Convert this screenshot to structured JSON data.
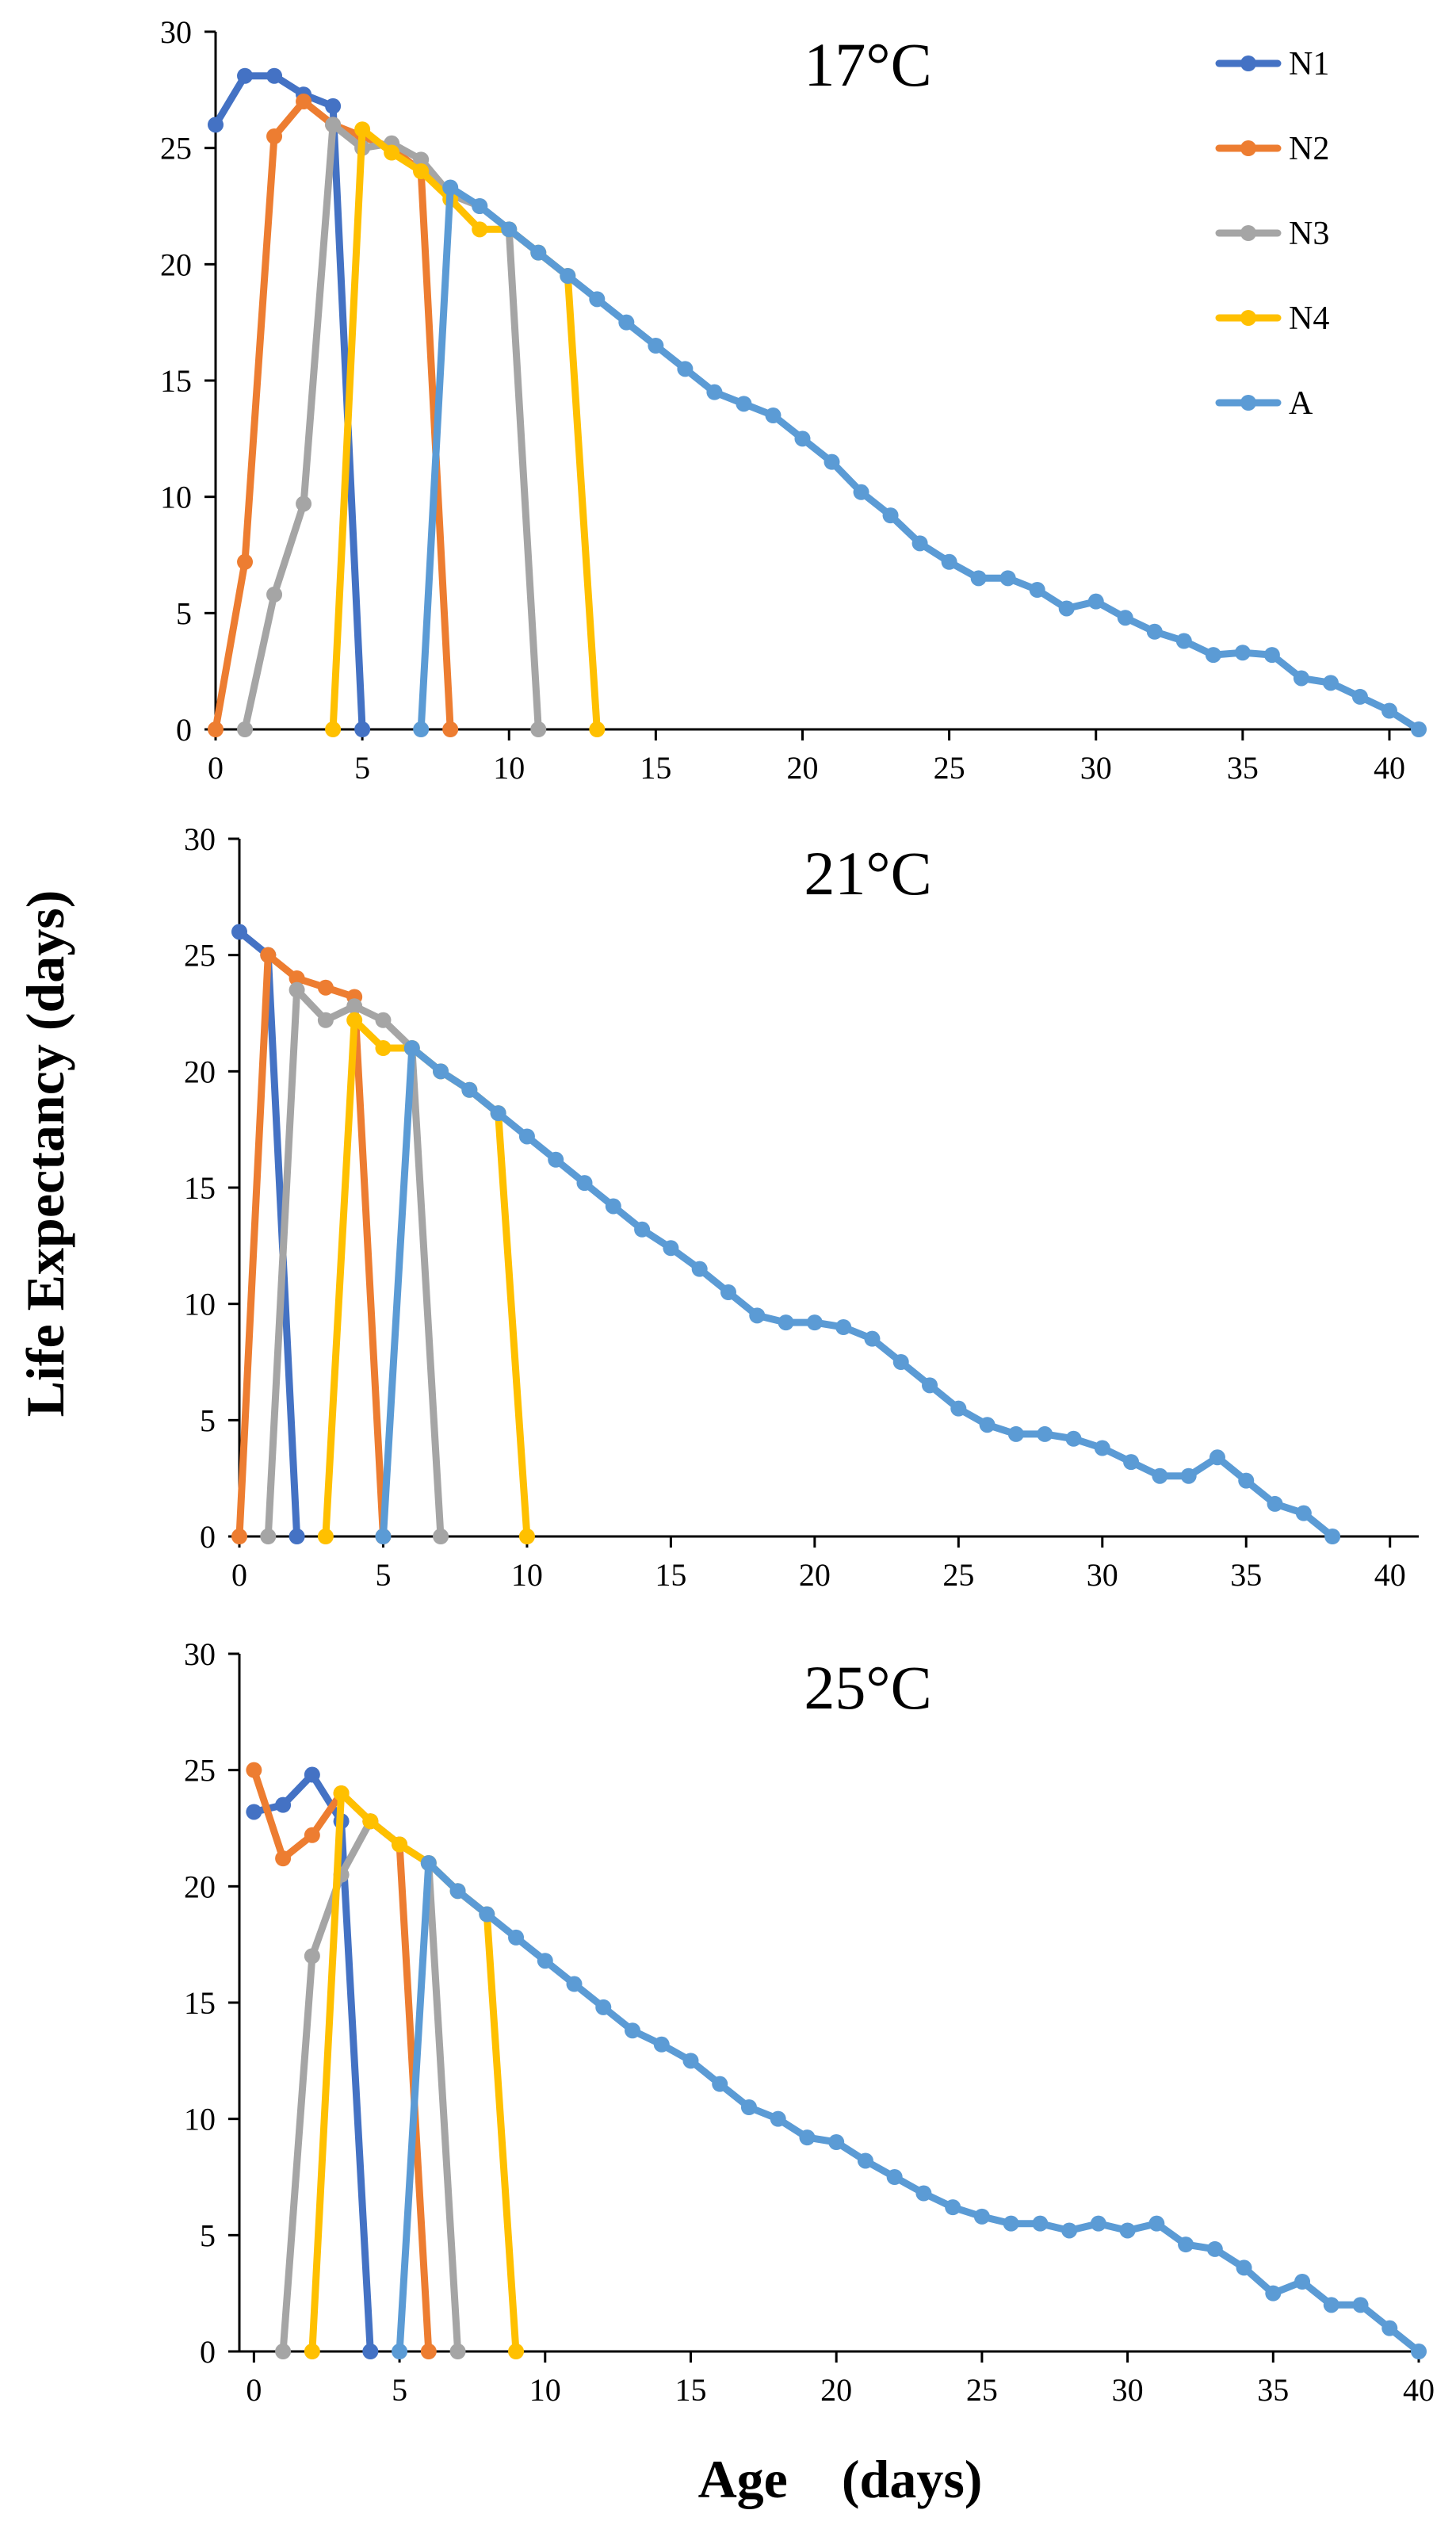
{
  "figure": {
    "ylabel": "Life Expectancy (days)",
    "xlabel": "Age　(days)"
  },
  "colors": {
    "N1": "#4472C4",
    "N2": "#ED7D31",
    "N3": "#A5A5A5",
    "N4": "#FFC000",
    "A": "#5B9BD5"
  },
  "legend": [
    "N1",
    "N2",
    "N3",
    "N4",
    "A"
  ],
  "chart_data": [
    {
      "type": "line",
      "title": "17°C",
      "xlim": [
        0,
        41
      ],
      "ylim": [
        0,
        30
      ],
      "xticks": [
        0,
        5,
        10,
        15,
        20,
        25,
        30,
        35,
        40
      ],
      "yticks": [
        0,
        5,
        10,
        15,
        20,
        25,
        30
      ],
      "series": [
        {
          "name": "N1",
          "points": [
            [
              0,
              26
            ],
            [
              1,
              28.1
            ],
            [
              2,
              28.1
            ],
            [
              3,
              27.3
            ],
            [
              4,
              26.8
            ],
            [
              5,
              0
            ]
          ]
        },
        {
          "name": "N2",
          "points": [
            [
              0,
              0
            ],
            [
              1,
              7.2
            ],
            [
              2,
              25.5
            ],
            [
              3,
              27
            ],
            [
              4,
              26
            ],
            [
              5,
              25.5
            ],
            [
              6,
              25
            ],
            [
              7,
              24
            ],
            [
              8,
              0
            ]
          ]
        },
        {
          "name": "N3",
          "points": [
            [
              1,
              0
            ],
            [
              2,
              5.8
            ],
            [
              3,
              9.7
            ],
            [
              4,
              26
            ],
            [
              5,
              25
            ],
            [
              6,
              25.2
            ],
            [
              7,
              24.5
            ],
            [
              8,
              23
            ],
            [
              9,
              22.5
            ],
            [
              10,
              21.5
            ],
            [
              11,
              0
            ]
          ]
        },
        {
          "name": "N4",
          "points": [
            [
              4,
              0
            ],
            [
              5,
              25.8
            ],
            [
              6,
              24.8
            ],
            [
              7,
              24
            ],
            [
              8,
              22.8
            ],
            [
              9,
              21.5
            ],
            [
              10,
              21.5
            ],
            [
              11,
              20.5
            ],
            [
              12,
              19.5
            ],
            [
              13,
              0
            ]
          ]
        },
        {
          "name": "A",
          "points": [
            [
              7,
              0
            ],
            [
              8,
              23.3
            ],
            [
              9,
              22.5
            ],
            [
              10,
              21.5
            ],
            [
              11,
              20.5
            ],
            [
              12,
              19.5
            ],
            [
              13,
              18.5
            ],
            [
              14,
              17.5
            ],
            [
              15,
              16.5
            ],
            [
              16,
              15.5
            ],
            [
              17,
              14.5
            ],
            [
              18,
              14
            ],
            [
              19,
              13.5
            ],
            [
              20,
              12.5
            ],
            [
              21,
              11.5
            ],
            [
              22,
              10.2
            ],
            [
              23,
              9.2
            ],
            [
              24,
              8
            ],
            [
              25,
              7.2
            ],
            [
              26,
              6.5
            ],
            [
              27,
              6.5
            ],
            [
              28,
              6
            ],
            [
              29,
              5.2
            ],
            [
              30,
              5.5
            ],
            [
              31,
              4.8
            ],
            [
              32,
              4.2
            ],
            [
              33,
              3.8
            ],
            [
              34,
              3.2
            ],
            [
              35,
              3.3
            ],
            [
              36,
              3.2
            ],
            [
              37,
              2.2
            ],
            [
              38,
              2
            ],
            [
              39,
              1.4
            ],
            [
              40,
              0.8
            ],
            [
              41,
              0
            ]
          ]
        }
      ]
    },
    {
      "type": "line",
      "title": "21°C",
      "xlim": [
        0,
        41
      ],
      "ylim": [
        0,
        30
      ],
      "xticks": [
        0,
        5,
        10,
        15,
        20,
        25,
        30,
        35,
        40
      ],
      "yticks": [
        0,
        5,
        10,
        15,
        20,
        25,
        30
      ],
      "series": [
        {
          "name": "N1",
          "points": [
            [
              0,
              26
            ],
            [
              1,
              25
            ],
            [
              2,
              0
            ]
          ]
        },
        {
          "name": "N2",
          "points": [
            [
              0,
              0
            ],
            [
              1,
              25
            ],
            [
              2,
              24
            ],
            [
              3,
              23.6
            ],
            [
              4,
              23.2
            ],
            [
              5,
              0
            ]
          ]
        },
        {
          "name": "N3",
          "points": [
            [
              1,
              0
            ],
            [
              2,
              23.5
            ],
            [
              3,
              22.2
            ],
            [
              4,
              22.8
            ],
            [
              5,
              22.2
            ],
            [
              6,
              21
            ],
            [
              7,
              0
            ]
          ]
        },
        {
          "name": "N4",
          "points": [
            [
              3,
              0
            ],
            [
              4,
              22.2
            ],
            [
              5,
              21
            ],
            [
              6,
              21
            ],
            [
              7,
              20
            ],
            [
              8,
              19.2
            ],
            [
              9,
              18.2
            ],
            [
              10,
              0
            ]
          ]
        },
        {
          "name": "A",
          "points": [
            [
              5,
              0
            ],
            [
              6,
              21
            ],
            [
              7,
              20
            ],
            [
              8,
              19.2
            ],
            [
              9,
              18.2
            ],
            [
              10,
              17.2
            ],
            [
              11,
              16.2
            ],
            [
              12,
              15.2
            ],
            [
              13,
              14.2
            ],
            [
              14,
              13.2
            ],
            [
              15,
              12.4
            ],
            [
              16,
              11.5
            ],
            [
              17,
              10.5
            ],
            [
              18,
              9.5
            ],
            [
              19,
              9.2
            ],
            [
              20,
              9.2
            ],
            [
              21,
              9
            ],
            [
              22,
              8.5
            ],
            [
              23,
              7.5
            ],
            [
              24,
              6.5
            ],
            [
              25,
              5.5
            ],
            [
              26,
              4.8
            ],
            [
              27,
              4.4
            ],
            [
              28,
              4.4
            ],
            [
              29,
              4.2
            ],
            [
              30,
              3.8
            ],
            [
              31,
              3.2
            ],
            [
              32,
              2.6
            ],
            [
              33,
              2.6
            ],
            [
              34,
              3.4
            ],
            [
              35,
              2.4
            ],
            [
              36,
              1.4
            ],
            [
              37,
              1
            ],
            [
              38,
              0
            ]
          ]
        }
      ]
    },
    {
      "type": "line",
      "title": "25°C",
      "xlim": [
        -0.5,
        40
      ],
      "ylim": [
        0,
        30
      ],
      "xticks": [
        0,
        5,
        10,
        15,
        20,
        25,
        30,
        35,
        40
      ],
      "yticks": [
        0,
        5,
        10,
        15,
        20,
        25,
        30
      ],
      "series": [
        {
          "name": "N1",
          "points": [
            [
              0,
              23.2
            ],
            [
              1,
              23.5
            ],
            [
              2,
              24.8
            ],
            [
              3,
              22.8
            ],
            [
              4,
              0
            ]
          ]
        },
        {
          "name": "N2",
          "points": [
            [
              0,
              25
            ],
            [
              1,
              21.2
            ],
            [
              2,
              22.2
            ],
            [
              3,
              24
            ],
            [
              4,
              22.8
            ],
            [
              5,
              21.8
            ],
            [
              6,
              0
            ]
          ]
        },
        {
          "name": "N3",
          "points": [
            [
              1,
              0
            ],
            [
              2,
              17
            ],
            [
              3,
              20.5
            ],
            [
              4,
              22.8
            ],
            [
              5,
              21.8
            ],
            [
              6,
              21
            ],
            [
              7,
              0
            ]
          ]
        },
        {
          "name": "N4",
          "points": [
            [
              2,
              0
            ],
            [
              3,
              24
            ],
            [
              4,
              22.8
            ],
            [
              5,
              21.8
            ],
            [
              6,
              21
            ],
            [
              7,
              19.8
            ],
            [
              8,
              18.8
            ],
            [
              9,
              0
            ]
          ]
        },
        {
          "name": "A",
          "points": [
            [
              5,
              0
            ],
            [
              6,
              21
            ],
            [
              7,
              19.8
            ],
            [
              8,
              18.8
            ],
            [
              9,
              17.8
            ],
            [
              10,
              16.8
            ],
            [
              11,
              15.8
            ],
            [
              12,
              14.8
            ],
            [
              13,
              13.8
            ],
            [
              14,
              13.2
            ],
            [
              15,
              12.5
            ],
            [
              16,
              11.5
            ],
            [
              17,
              10.5
            ],
            [
              18,
              10
            ],
            [
              19,
              9.2
            ],
            [
              20,
              9
            ],
            [
              21,
              8.2
            ],
            [
              22,
              7.5
            ],
            [
              23,
              6.8
            ],
            [
              24,
              6.2
            ],
            [
              25,
              5.8
            ],
            [
              26,
              5.5
            ],
            [
              27,
              5.5
            ],
            [
              28,
              5.2
            ],
            [
              29,
              5.5
            ],
            [
              30,
              5.2
            ],
            [
              31,
              5.5
            ],
            [
              32,
              4.6
            ],
            [
              33,
              4.4
            ],
            [
              34,
              3.6
            ],
            [
              35,
              2.5
            ],
            [
              36,
              3
            ],
            [
              37,
              2
            ],
            [
              38,
              2
            ],
            [
              39,
              1
            ],
            [
              40,
              0
            ]
          ]
        }
      ]
    }
  ]
}
